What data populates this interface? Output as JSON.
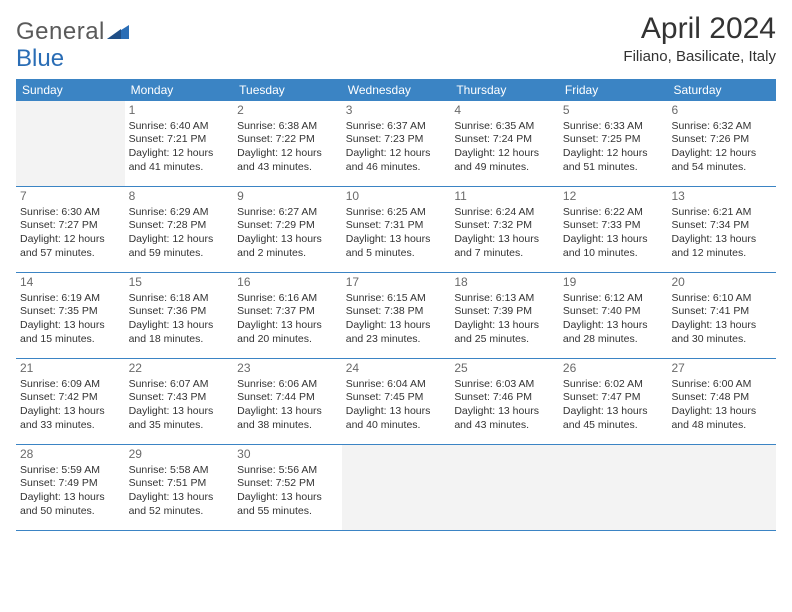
{
  "logo": {
    "text_left": "General",
    "text_right": "Blue",
    "color_gray": "#6a6a6a",
    "color_blue": "#2a6db5"
  },
  "title": "April 2024",
  "location": "Filiano, Basilicate, Italy",
  "colors": {
    "header_bg": "#3b84c4",
    "header_text": "#ffffff",
    "border": "#3b84c4",
    "empty_bg": "#f3f3f3",
    "text": "#333333",
    "daynum": "#6a6a6a"
  },
  "day_names": [
    "Sunday",
    "Monday",
    "Tuesday",
    "Wednesday",
    "Thursday",
    "Friday",
    "Saturday"
  ],
  "weeks": [
    [
      {
        "day": "",
        "sunrise": "",
        "sunset": "",
        "daylight": ""
      },
      {
        "day": "1",
        "sunrise": "Sunrise: 6:40 AM",
        "sunset": "Sunset: 7:21 PM",
        "daylight": "Daylight: 12 hours and 41 minutes."
      },
      {
        "day": "2",
        "sunrise": "Sunrise: 6:38 AM",
        "sunset": "Sunset: 7:22 PM",
        "daylight": "Daylight: 12 hours and 43 minutes."
      },
      {
        "day": "3",
        "sunrise": "Sunrise: 6:37 AM",
        "sunset": "Sunset: 7:23 PM",
        "daylight": "Daylight: 12 hours and 46 minutes."
      },
      {
        "day": "4",
        "sunrise": "Sunrise: 6:35 AM",
        "sunset": "Sunset: 7:24 PM",
        "daylight": "Daylight: 12 hours and 49 minutes."
      },
      {
        "day": "5",
        "sunrise": "Sunrise: 6:33 AM",
        "sunset": "Sunset: 7:25 PM",
        "daylight": "Daylight: 12 hours and 51 minutes."
      },
      {
        "day": "6",
        "sunrise": "Sunrise: 6:32 AM",
        "sunset": "Sunset: 7:26 PM",
        "daylight": "Daylight: 12 hours and 54 minutes."
      }
    ],
    [
      {
        "day": "7",
        "sunrise": "Sunrise: 6:30 AM",
        "sunset": "Sunset: 7:27 PM",
        "daylight": "Daylight: 12 hours and 57 minutes."
      },
      {
        "day": "8",
        "sunrise": "Sunrise: 6:29 AM",
        "sunset": "Sunset: 7:28 PM",
        "daylight": "Daylight: 12 hours and 59 minutes."
      },
      {
        "day": "9",
        "sunrise": "Sunrise: 6:27 AM",
        "sunset": "Sunset: 7:29 PM",
        "daylight": "Daylight: 13 hours and 2 minutes."
      },
      {
        "day": "10",
        "sunrise": "Sunrise: 6:25 AM",
        "sunset": "Sunset: 7:31 PM",
        "daylight": "Daylight: 13 hours and 5 minutes."
      },
      {
        "day": "11",
        "sunrise": "Sunrise: 6:24 AM",
        "sunset": "Sunset: 7:32 PM",
        "daylight": "Daylight: 13 hours and 7 minutes."
      },
      {
        "day": "12",
        "sunrise": "Sunrise: 6:22 AM",
        "sunset": "Sunset: 7:33 PM",
        "daylight": "Daylight: 13 hours and 10 minutes."
      },
      {
        "day": "13",
        "sunrise": "Sunrise: 6:21 AM",
        "sunset": "Sunset: 7:34 PM",
        "daylight": "Daylight: 13 hours and 12 minutes."
      }
    ],
    [
      {
        "day": "14",
        "sunrise": "Sunrise: 6:19 AM",
        "sunset": "Sunset: 7:35 PM",
        "daylight": "Daylight: 13 hours and 15 minutes."
      },
      {
        "day": "15",
        "sunrise": "Sunrise: 6:18 AM",
        "sunset": "Sunset: 7:36 PM",
        "daylight": "Daylight: 13 hours and 18 minutes."
      },
      {
        "day": "16",
        "sunrise": "Sunrise: 6:16 AM",
        "sunset": "Sunset: 7:37 PM",
        "daylight": "Daylight: 13 hours and 20 minutes."
      },
      {
        "day": "17",
        "sunrise": "Sunrise: 6:15 AM",
        "sunset": "Sunset: 7:38 PM",
        "daylight": "Daylight: 13 hours and 23 minutes."
      },
      {
        "day": "18",
        "sunrise": "Sunrise: 6:13 AM",
        "sunset": "Sunset: 7:39 PM",
        "daylight": "Daylight: 13 hours and 25 minutes."
      },
      {
        "day": "19",
        "sunrise": "Sunrise: 6:12 AM",
        "sunset": "Sunset: 7:40 PM",
        "daylight": "Daylight: 13 hours and 28 minutes."
      },
      {
        "day": "20",
        "sunrise": "Sunrise: 6:10 AM",
        "sunset": "Sunset: 7:41 PM",
        "daylight": "Daylight: 13 hours and 30 minutes."
      }
    ],
    [
      {
        "day": "21",
        "sunrise": "Sunrise: 6:09 AM",
        "sunset": "Sunset: 7:42 PM",
        "daylight": "Daylight: 13 hours and 33 minutes."
      },
      {
        "day": "22",
        "sunrise": "Sunrise: 6:07 AM",
        "sunset": "Sunset: 7:43 PM",
        "daylight": "Daylight: 13 hours and 35 minutes."
      },
      {
        "day": "23",
        "sunrise": "Sunrise: 6:06 AM",
        "sunset": "Sunset: 7:44 PM",
        "daylight": "Daylight: 13 hours and 38 minutes."
      },
      {
        "day": "24",
        "sunrise": "Sunrise: 6:04 AM",
        "sunset": "Sunset: 7:45 PM",
        "daylight": "Daylight: 13 hours and 40 minutes."
      },
      {
        "day": "25",
        "sunrise": "Sunrise: 6:03 AM",
        "sunset": "Sunset: 7:46 PM",
        "daylight": "Daylight: 13 hours and 43 minutes."
      },
      {
        "day": "26",
        "sunrise": "Sunrise: 6:02 AM",
        "sunset": "Sunset: 7:47 PM",
        "daylight": "Daylight: 13 hours and 45 minutes."
      },
      {
        "day": "27",
        "sunrise": "Sunrise: 6:00 AM",
        "sunset": "Sunset: 7:48 PM",
        "daylight": "Daylight: 13 hours and 48 minutes."
      }
    ],
    [
      {
        "day": "28",
        "sunrise": "Sunrise: 5:59 AM",
        "sunset": "Sunset: 7:49 PM",
        "daylight": "Daylight: 13 hours and 50 minutes."
      },
      {
        "day": "29",
        "sunrise": "Sunrise: 5:58 AM",
        "sunset": "Sunset: 7:51 PM",
        "daylight": "Daylight: 13 hours and 52 minutes."
      },
      {
        "day": "30",
        "sunrise": "Sunrise: 5:56 AM",
        "sunset": "Sunset: 7:52 PM",
        "daylight": "Daylight: 13 hours and 55 minutes."
      },
      {
        "day": "",
        "sunrise": "",
        "sunset": "",
        "daylight": ""
      },
      {
        "day": "",
        "sunrise": "",
        "sunset": "",
        "daylight": ""
      },
      {
        "day": "",
        "sunrise": "",
        "sunset": "",
        "daylight": ""
      },
      {
        "day": "",
        "sunrise": "",
        "sunset": "",
        "daylight": ""
      }
    ]
  ]
}
